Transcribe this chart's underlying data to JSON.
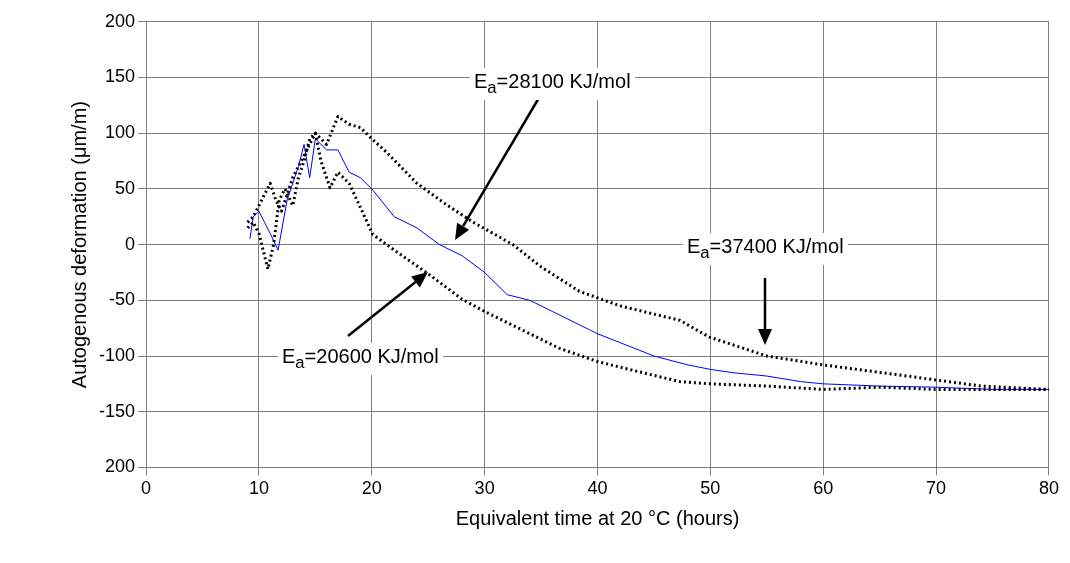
{
  "chart_data": {
    "type": "line",
    "xlabel": "Equivalent time at 20 °C (hours)",
    "ylabel": "Autogenous deformation (μm/m)",
    "xlim": [
      0,
      80
    ],
    "xticks": [
      0,
      10,
      20,
      30,
      40,
      50,
      60,
      70,
      80
    ],
    "ylim": [
      -200,
      200
    ],
    "yticks": [
      {
        "value": -200,
        "label": "200"
      },
      -150,
      -100,
      -50,
      0,
      50,
      100,
      150,
      200
    ],
    "grid": true,
    "legend": false,
    "marker": "none",
    "series": [
      {
        "color": "#000000",
        "line_style": "dotted",
        "x": [
          9,
          9.5,
          10,
          10.5,
          10.8,
          11.3,
          11.8,
          12.3,
          13,
          13.5,
          14,
          14.5,
          15,
          15.5,
          16.3,
          17,
          18,
          20.1,
          22,
          25.1,
          28,
          30,
          33,
          36.6,
          40,
          44,
          47.3,
          50,
          55,
          60,
          65,
          70,
          75,
          80
        ],
        "values": [
          15,
          20,
          10,
          -10,
          -22,
          0,
          40,
          50,
          35,
          60,
          75,
          95,
          100,
          75,
          51,
          65,
          55,
          9,
          -5,
          -27,
          -49,
          -60,
          -75,
          -93,
          -105,
          -115,
          -123,
          -125,
          -127,
          -130,
          -128,
          -130,
          -130,
          -130
        ]
      },
      {
        "color": "#0000ff",
        "line_style": "solid",
        "x": [
          9.2,
          9.5,
          10,
          10.5,
          11,
          11.7,
          12.5,
          13.5,
          14,
          14.5,
          15,
          16,
          17,
          18,
          19,
          20,
          22,
          24,
          26,
          28,
          30,
          32,
          34,
          36,
          38,
          40,
          42,
          45,
          48,
          50,
          52,
          55,
          58,
          60,
          65,
          70,
          75,
          80
        ],
        "values": [
          5,
          25,
          30,
          20,
          10,
          -5,
          40,
          70,
          90,
          60,
          95,
          85,
          85,
          65,
          60,
          50,
          25,
          15,
          0,
          -10,
          -25,
          -45,
          -50,
          -60,
          -70,
          -80,
          -88,
          -100,
          -108,
          -112,
          -115,
          -118,
          -123,
          -125,
          -127,
          -128,
          -130,
          -130
        ]
      },
      {
        "color": "#000000",
        "line_style": "dotted",
        "x": [
          9,
          9.5,
          10,
          10.5,
          11,
          11.5,
          12,
          12.5,
          13,
          14,
          15,
          16,
          17,
          18,
          19,
          20,
          21.3,
          24,
          26.6,
          29,
          32.5,
          35,
          38.4,
          42,
          47.3,
          49.9,
          55,
          60,
          66.7,
          74,
          80
        ],
        "values": [
          20,
          25,
          35,
          45,
          55,
          40,
          30,
          45,
          60,
          80,
          100,
          90,
          115,
          108,
          105,
          95,
          83,
          55,
          36,
          20,
          0,
          -20,
          -42,
          -55,
          -68,
          -83,
          -100,
          -108,
          -117,
          -127,
          -130
        ]
      }
    ],
    "annotations": [
      "E$_{a}$=28100 KJ/mol",
      "E$_{a}$=37400 KJ/mol",
      "E$_{a}$=20600 KJ/mol"
    ]
  }
}
